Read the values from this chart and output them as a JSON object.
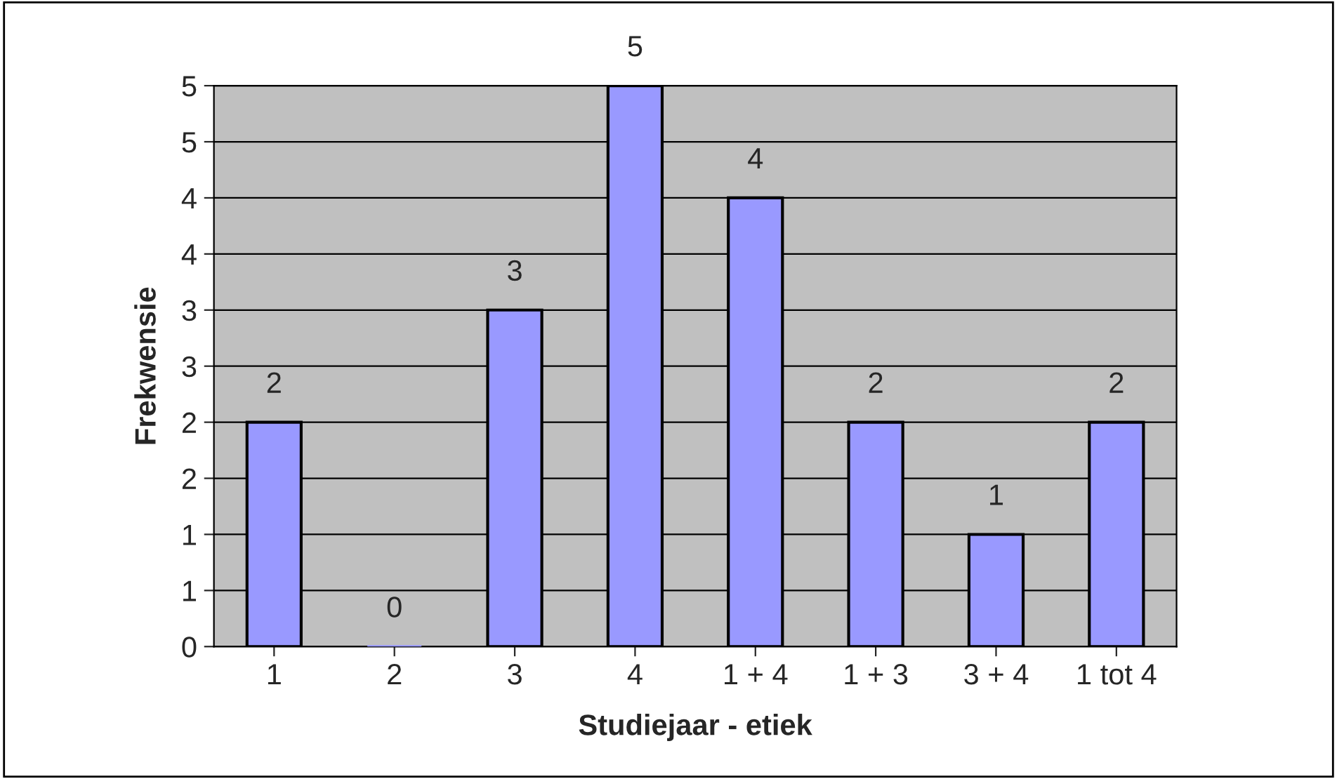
{
  "chart_data": {
    "type": "bar",
    "xlabel": "Studiejaar - etiek",
    "ylabel": "Frekwensie",
    "categories": [
      "1",
      "2",
      "3",
      "4",
      "1 + 4",
      "1 + 3",
      "3 + 4",
      "1 tot 4"
    ],
    "values": [
      2,
      0,
      3,
      5,
      4,
      2,
      1,
      2
    ],
    "color": "#9999ff",
    "data_labels": true,
    "ylim": [
      0,
      5
    ],
    "yticks": [
      0,
      {
        "value": 0.5,
        "label": "1"
      },
      1,
      {
        "value": 1.5,
        "label": "2"
      },
      2,
      {
        "value": 2.5,
        "label": "3"
      },
      3,
      {
        "value": 3.5,
        "label": "4"
      },
      4,
      {
        "value": 4.5,
        "label": "5"
      },
      5
    ],
    "grid": "y"
  }
}
